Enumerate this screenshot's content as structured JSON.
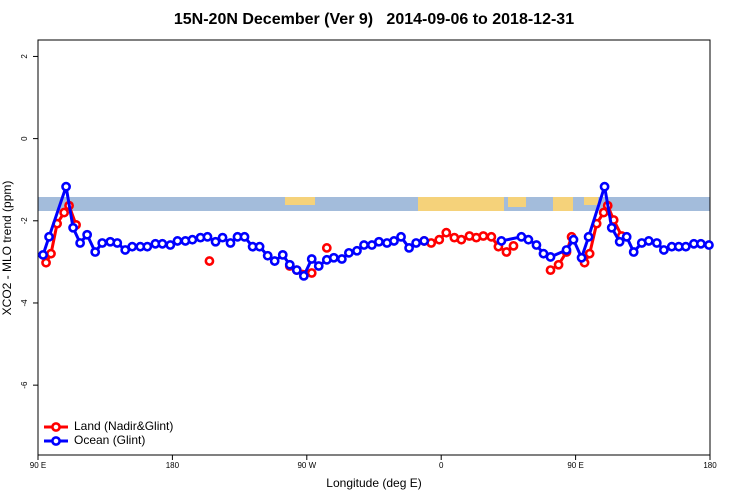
{
  "chart_data": {
    "type": "line",
    "title": "15N-20N December (Ver 9)   2014-09-06 to 2018-12-31",
    "xlabel": "Longitude (deg E)",
    "ylabel": "XCO2 - MLO trend (ppm)",
    "xlim": [
      90,
      540
    ],
    "ylim": [
      -7.7,
      2.4
    ],
    "xticks": [
      {
        "value": 90,
        "label": "90 E"
      },
      180,
      {
        "value": 270,
        "label": "90 W"
      },
      {
        "value": 360,
        "label": "0"
      },
      {
        "value": 450,
        "label": "90 E"
      },
      {
        "value": 540,
        "label": "180"
      }
    ],
    "yticks": [
      -6,
      -4,
      -2,
      0,
      2
    ],
    "legend": "bottom-left",
    "series": [
      {
        "name": "Land (Nadir&Glint)",
        "color": "#ff0000",
        "x": [
          95.4,
          98.7,
          102.8,
          107.5,
          110.8,
          115.5,
          null,
          204.8,
          null,
          258.6,
          263.3,
          273.3,
          null,
          283.4,
          null,
          348.6,
          353.3,
          358.7,
          363.4,
          368.8,
          373.5,
          378.9,
          383.5,
          388.2,
          393.6,
          398.3,
          403.7,
          408.4,
          null,
          433.2,
          438.6,
          443.9,
          447.3,
          null,
          456.0,
          459.4,
          464.1,
          468.8,
          471.5,
          475.5,
          480.9
        ],
        "values": [
          -3.02,
          -2.8,
          -2.07,
          -1.8,
          -1.63,
          -2.1,
          null,
          -2.98,
          null,
          -3.1,
          -3.2,
          -3.27,
          null,
          -2.66,
          null,
          -2.49,
          -2.54,
          -2.46,
          -2.29,
          -2.41,
          -2.46,
          -2.37,
          -2.41,
          -2.37,
          -2.39,
          -2.63,
          -2.76,
          -2.61,
          null,
          -3.2,
          -3.07,
          -2.76,
          -2.39,
          null,
          -3.02,
          -2.8,
          -2.07,
          -1.8,
          -1.63,
          -1.98,
          -2.37
        ]
      },
      {
        "name": "Ocean (Glint)",
        "color": "#0000ff",
        "x": [
          93.4,
          97.4,
          108.8,
          113.5,
          118.2,
          122.9,
          128.3,
          133.0,
          138.4,
          143.1,
          148.4,
          153.1,
          158.5,
          163.2,
          168.6,
          173.3,
          178.6,
          183.4,
          188.7,
          193.4,
          198.8,
          203.5,
          208.9,
          213.6,
          218.9,
          223.6,
          228.3,
          233.7,
          238.4,
          243.8,
          248.5,
          253.9,
          258.6,
          263.3,
          268.0,
          273.3,
          278.0,
          283.4,
          288.1,
          293.5,
          298.2,
          303.6,
          308.3,
          313.6,
          318.3,
          323.7,
          328.4,
          333.1,
          338.5,
          343.2,
          348.6,
          null,
          400.3,
          413.7,
          418.4,
          423.8,
          428.5,
          433.2,
          443.9,
          448.6,
          454.0,
          458.7,
          469.4,
          474.2,
          479.5,
          484.2,
          488.9,
          494.3,
          499.0,
          504.4,
          509.1,
          514.4,
          519.1,
          523.8,
          529.2,
          533.9,
          539.3
        ],
        "values": [
          -2.83,
          -2.39,
          -1.17,
          -2.17,
          -2.54,
          -2.34,
          -2.76,
          -2.54,
          -2.51,
          -2.54,
          -2.71,
          -2.63,
          -2.63,
          -2.63,
          -2.56,
          -2.56,
          -2.59,
          -2.49,
          -2.49,
          -2.46,
          -2.41,
          -2.39,
          -2.51,
          -2.41,
          -2.54,
          -2.39,
          -2.39,
          -2.63,
          -2.63,
          -2.85,
          -2.98,
          -2.83,
          -3.07,
          -3.2,
          -3.34,
          -2.93,
          -3.1,
          -2.95,
          -2.9,
          -2.93,
          -2.78,
          -2.73,
          -2.59,
          -2.59,
          -2.51,
          -2.54,
          -2.49,
          -2.39,
          -2.66,
          -2.54,
          -2.49,
          null,
          -2.49,
          -2.39,
          -2.46,
          -2.59,
          -2.8,
          -2.88,
          -2.71,
          -2.46,
          -2.9,
          -2.39,
          -1.17,
          -2.17,
          -2.51,
          -2.39,
          -2.76,
          -2.54,
          -2.49,
          -2.54,
          -2.71,
          -2.63,
          -2.63,
          -2.63,
          -2.56,
          -2.56,
          -2.59
        ]
      }
    ]
  }
}
